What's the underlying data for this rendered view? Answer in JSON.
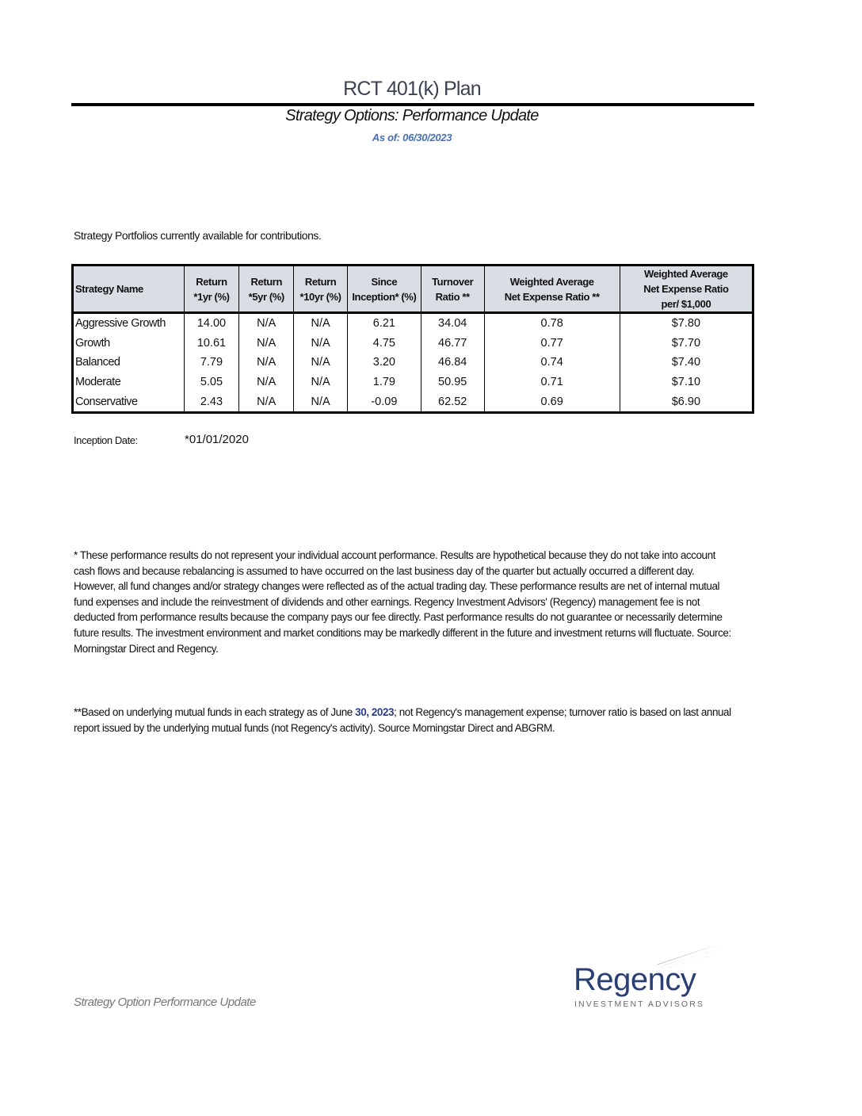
{
  "header": {
    "title": "RCT 401(k) Plan",
    "subtitle": "Strategy Options: Performance Update",
    "as_of": "As of: 06/30/2023"
  },
  "intro": "Strategy Portfolios currently available for contributions.",
  "table": {
    "headers": [
      [
        "Strategy Name"
      ],
      [
        "Return",
        "*1yr (%)"
      ],
      [
        "Return",
        "*5yr (%)"
      ],
      [
        "Return",
        "*10yr (%)"
      ],
      [
        "Since",
        "Inception* (%)"
      ],
      [
        "Turnover",
        "Ratio **"
      ],
      [
        "Weighted Average",
        "Net Expense Ratio **"
      ],
      [
        "Weighted Average",
        "Net Expense Ratio",
        "per/ $1,000"
      ]
    ],
    "rows": [
      [
        "Aggressive Growth",
        "14.00",
        "N/A",
        "N/A",
        "6.21",
        "34.04",
        "0.78",
        "$7.80"
      ],
      [
        "Growth",
        "10.61",
        "N/A",
        "N/A",
        "4.75",
        "46.77",
        "0.77",
        "$7.70"
      ],
      [
        "Balanced",
        "7.79",
        "N/A",
        "N/A",
        "3.20",
        "46.84",
        "0.74",
        "$7.40"
      ],
      [
        "Moderate",
        "5.05",
        "N/A",
        "N/A",
        "1.79",
        "50.95",
        "0.71",
        "$7.10"
      ],
      [
        "Conservative",
        "2.43",
        "N/A",
        "N/A",
        "-0.09",
        "62.52",
        "0.69",
        "$6.90"
      ]
    ]
  },
  "inception": {
    "label": "Inception Date:",
    "value": "*01/01/2020"
  },
  "footnote1": [
    "* These performance results do not represent your individual account performance.  Results are hypothetical because they do not take into account",
    "cash flows and because rebalancing is assumed to have occurred on the last business day of the quarter but actually occurred a different day.",
    "However, all fund changes and/or strategy changes were reflected as of the actual trading day. These performance results are net of internal mutual",
    "fund expenses and include the reinvestment of dividends and other earnings.  Regency Investment Advisors' (Regency) management fee is not",
    "deducted from performance results because the company pays our fee directly.  Past performance results do not guarantee or necessarily determine",
    "future results.  The investment environment and market conditions may be markedly different in the future and investment returns will fluctuate. Source:",
    "Morningstar Direct and Regency."
  ],
  "footnote2": {
    "pre": "**Based on underlying mutual funds in each strategy as of June ",
    "highlight": "30, 2023",
    "post": "; not Regency's management expense; turnover ratio is based on last annual",
    "line2": "report  issued by the underlying mutual funds (not Regency's activity). Source Morningstar Direct and ABGRM."
  },
  "footer": "Strategy Option Performance Update",
  "logo": {
    "name": "Regency",
    "tagline": "INVESTMENT ADVISORS"
  },
  "colors": {
    "header_fill": "#d9dde4",
    "as_of": "#4a6fb0",
    "logo_navy": "#2a3f72",
    "logo_blue": "#3aa0d8"
  }
}
